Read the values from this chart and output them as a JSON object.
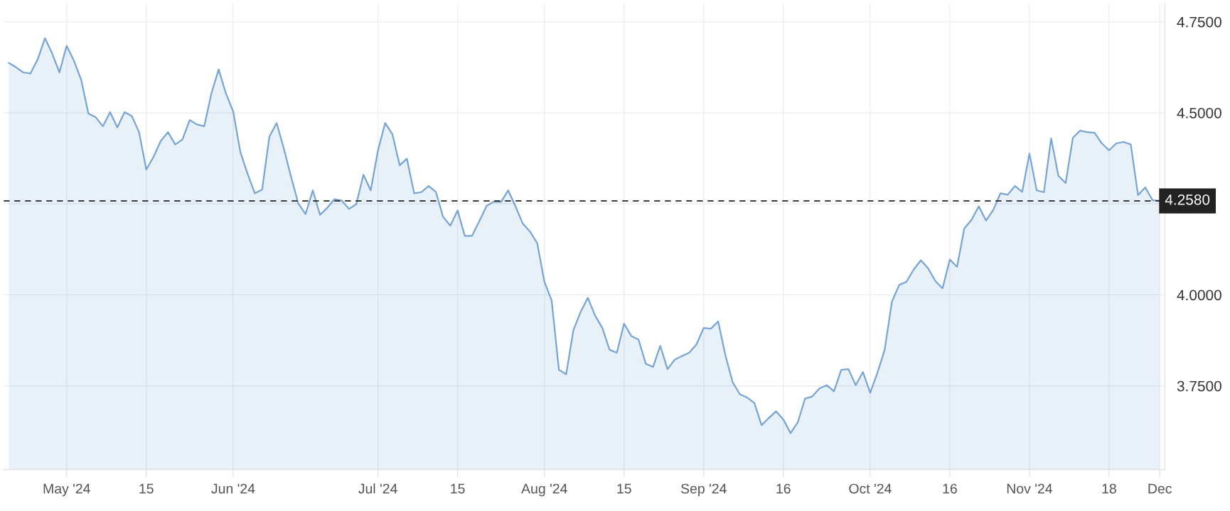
{
  "chart_data": {
    "type": "area",
    "categories": [
      null,
      null,
      null,
      null,
      null,
      null,
      null,
      null,
      "May '24",
      null,
      null,
      null,
      null,
      null,
      null,
      null,
      null,
      null,
      null,
      "15",
      null,
      null,
      null,
      null,
      null,
      null,
      null,
      null,
      null,
      null,
      null,
      "Jun '24",
      null,
      null,
      null,
      null,
      null,
      null,
      null,
      null,
      null,
      null,
      null,
      null,
      null,
      null,
      null,
      null,
      null,
      null,
      null,
      "Jul '24",
      null,
      null,
      null,
      null,
      null,
      null,
      null,
      null,
      null,
      null,
      "15",
      null,
      null,
      null,
      null,
      null,
      null,
      null,
      null,
      null,
      null,
      null,
      "Aug '24",
      null,
      null,
      null,
      null,
      null,
      null,
      null,
      null,
      null,
      null,
      "15",
      null,
      null,
      null,
      null,
      null,
      null,
      null,
      null,
      null,
      null,
      "Sep '24",
      null,
      null,
      null,
      null,
      null,
      null,
      null,
      null,
      null,
      null,
      "16",
      null,
      null,
      null,
      null,
      null,
      null,
      null,
      null,
      null,
      null,
      null,
      "Oct '24",
      null,
      null,
      null,
      null,
      null,
      null,
      null,
      null,
      null,
      null,
      "16",
      null,
      null,
      null,
      null,
      null,
      null,
      null,
      null,
      null,
      null,
      "Nov '24",
      null,
      null,
      null,
      null,
      null,
      null,
      null,
      null,
      null,
      null,
      "18",
      null,
      null,
      null,
      null,
      null,
      null,
      "Dec"
    ],
    "series": [
      {
        "color": "#77a5d3",
        "values": [
          4.637,
          4.625,
          4.611,
          4.608,
          4.647,
          4.705,
          4.663,
          4.611,
          4.684,
          4.643,
          4.591,
          4.498,
          4.488,
          4.463,
          4.502,
          4.46,
          4.502,
          4.491,
          4.447,
          4.344,
          4.379,
          4.423,
          4.447,
          4.413,
          4.427,
          4.48,
          4.468,
          4.463,
          4.554,
          4.619,
          4.553,
          4.504,
          4.392,
          4.332,
          4.279,
          4.289,
          4.434,
          4.472,
          4.402,
          4.324,
          4.251,
          4.222,
          4.287,
          4.22,
          4.239,
          4.263,
          4.259,
          4.236,
          4.249,
          4.33,
          4.287,
          4.396,
          4.472,
          4.441,
          4.356,
          4.374,
          4.279,
          4.282,
          4.299,
          4.283,
          4.214,
          4.19,
          4.232,
          4.162,
          4.162,
          4.202,
          4.244,
          4.256,
          4.255,
          4.287,
          4.243,
          4.196,
          4.174,
          4.142,
          4.036,
          3.984,
          3.794,
          3.782,
          3.903,
          3.953,
          3.992,
          3.943,
          3.909,
          3.849,
          3.841,
          3.921,
          3.887,
          3.877,
          3.811,
          3.802,
          3.86,
          3.796,
          3.822,
          3.832,
          3.841,
          3.864,
          3.909,
          3.907,
          3.927,
          3.834,
          3.76,
          3.727,
          3.718,
          3.703,
          3.642,
          3.662,
          3.68,
          3.658,
          3.62,
          3.65,
          3.715,
          3.721,
          3.743,
          3.752,
          3.735,
          3.794,
          3.796,
          3.752,
          3.788,
          3.731,
          3.786,
          3.849,
          3.981,
          4.027,
          4.036,
          4.069,
          4.095,
          4.073,
          4.038,
          4.018,
          4.097,
          4.077,
          4.182,
          4.206,
          4.243,
          4.204,
          4.233,
          4.279,
          4.275,
          4.299,
          4.283,
          4.388,
          4.287,
          4.282,
          4.43,
          4.327,
          4.307,
          4.431,
          4.451,
          4.447,
          4.445,
          4.416,
          4.397,
          4.416,
          4.42,
          4.413,
          4.274,
          4.295,
          4.26,
          4.258
        ]
      }
    ],
    "ylim": [
      3.52,
      4.8
    ],
    "yticks": [
      {
        "value": 3.75,
        "label": "3.7500"
      },
      {
        "value": 4.0,
        "label": "4.0000"
      },
      {
        "value": 4.25,
        "label": null
      },
      {
        "value": 4.5,
        "label": "4.5000"
      },
      {
        "value": 4.75,
        "label": "4.7500"
      }
    ],
    "ref_lines": [
      {
        "axis": "y",
        "value": 4.258,
        "label": "4.2580",
        "color": "#222222",
        "line_style": "dashed"
      }
    ],
    "grid": true
  }
}
